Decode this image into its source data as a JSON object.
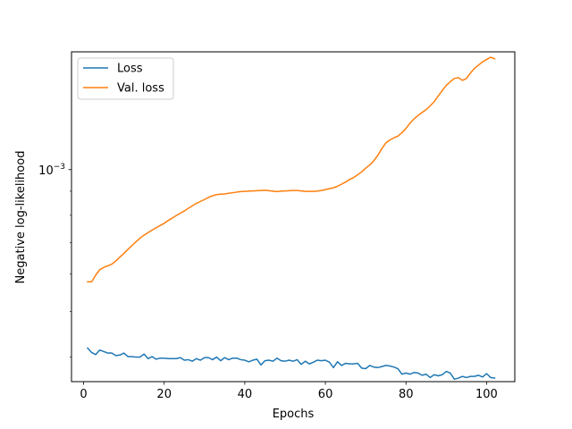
{
  "chart_data": {
    "type": "line",
    "xlabel": "Epochs",
    "ylabel": "Negative log-likelihood",
    "xlim": [
      -3,
      107
    ],
    "ylim_log10": [
      -3.45,
      -2.75
    ],
    "y_scale": "log",
    "x_ticks": [
      0,
      20,
      40,
      60,
      80,
      100
    ],
    "y_ticks": [
      {
        "value": 0.001,
        "base": "10",
        "exponent": "−3"
      }
    ],
    "grid": false,
    "legend_position": "upper-left",
    "series": [
      {
        "name": "Loss",
        "color": "#1f77b4",
        "x": [
          1,
          2,
          3,
          4,
          5,
          6,
          7,
          8,
          9,
          10,
          11,
          12,
          13,
          14,
          15,
          16,
          17,
          18,
          19,
          20,
          21,
          22,
          23,
          24,
          25,
          26,
          27,
          28,
          29,
          30,
          31,
          32,
          33,
          34,
          35,
          36,
          37,
          38,
          39,
          40,
          41,
          42,
          43,
          44,
          45,
          46,
          47,
          48,
          49,
          50,
          51,
          52,
          53,
          54,
          55,
          56,
          57,
          58,
          59,
          60,
          61,
          62,
          63,
          64,
          65,
          66,
          67,
          68,
          69,
          70,
          71,
          72,
          73,
          74,
          75,
          76,
          77,
          78,
          79,
          80,
          81,
          82,
          83,
          84,
          85,
          86,
          87,
          88,
          89,
          90,
          91,
          92,
          93,
          94,
          95,
          96,
          97,
          98,
          99,
          100,
          101,
          102
        ],
        "y": [
          0.000418,
          0.000409,
          0.000405,
          0.000414,
          0.000411,
          0.000408,
          0.000408,
          0.000403,
          0.000404,
          0.000408,
          0.000401,
          0.000401,
          0.0004,
          0.0004,
          0.000406,
          0.000397,
          0.000401,
          0.000396,
          0.000398,
          0.000398,
          0.000397,
          0.000397,
          0.000397,
          0.000399,
          0.000394,
          0.000395,
          0.000392,
          0.000397,
          0.000394,
          0.000399,
          0.000399,
          0.000395,
          0.0004,
          0.000393,
          0.000399,
          0.000395,
          0.000398,
          0.000398,
          0.000395,
          0.000394,
          0.000391,
          0.000394,
          0.000396,
          0.000385,
          0.000393,
          0.000394,
          0.000392,
          0.000398,
          0.000393,
          0.000392,
          0.000394,
          0.000392,
          0.000395,
          0.000386,
          0.000392,
          0.000387,
          0.00039,
          0.000394,
          0.000393,
          0.000394,
          0.00039,
          0.00038,
          0.000391,
          0.000384,
          0.000388,
          0.000387,
          0.000387,
          0.000388,
          0.000379,
          0.000378,
          0.000384,
          0.000381,
          0.00038,
          0.000382,
          0.000384,
          0.000383,
          0.000381,
          0.000378,
          0.000368,
          0.00037,
          0.000368,
          0.000371,
          0.00037,
          0.000366,
          0.000368,
          0.000362,
          0.000367,
          0.000365,
          0.000367,
          0.000373,
          0.00037,
          0.000359,
          0.000361,
          0.000364,
          0.000362,
          0.000364,
          0.000364,
          0.000366,
          0.000363,
          0.000369,
          0.000362,
          0.000361
        ]
      },
      {
        "name": "Val. loss",
        "color": "#ff7f0e",
        "x": [
          1,
          2,
          3,
          4,
          5,
          6,
          7,
          8,
          9,
          10,
          11,
          12,
          13,
          14,
          15,
          16,
          17,
          18,
          19,
          20,
          21,
          22,
          23,
          24,
          25,
          26,
          27,
          28,
          29,
          30,
          31,
          32,
          33,
          34,
          35,
          36,
          37,
          38,
          39,
          40,
          41,
          42,
          43,
          44,
          45,
          46,
          47,
          48,
          49,
          50,
          51,
          52,
          53,
          54,
          55,
          56,
          57,
          58,
          59,
          60,
          61,
          62,
          63,
          64,
          65,
          66,
          67,
          68,
          69,
          70,
          71,
          72,
          73,
          74,
          75,
          76,
          77,
          78,
          79,
          80,
          81,
          82,
          83,
          84,
          85,
          86,
          87,
          88,
          89,
          90,
          91,
          92,
          93,
          94,
          95,
          96,
          97,
          98,
          99,
          100,
          101,
          102
        ],
        "y": [
          0.000578,
          0.000578,
          0.000597,
          0.000613,
          0.00062,
          0.000625,
          0.00063,
          0.00064,
          0.000652,
          0.000664,
          0.000677,
          0.00069,
          0.000703,
          0.000715,
          0.000726,
          0.000735,
          0.000744,
          0.000753,
          0.000761,
          0.000769,
          0.00078,
          0.000789,
          0.000799,
          0.000808,
          0.000817,
          0.000828,
          0.000838,
          0.000848,
          0.000856,
          0.000864,
          0.000873,
          0.00088,
          0.000885,
          0.000887,
          0.000888,
          0.000891,
          0.000893,
          0.000896,
          0.000898,
          0.000899,
          0.0009,
          0.000901,
          0.000902,
          0.000903,
          0.000904,
          0.000902,
          0.0009,
          0.000898,
          0.0009,
          0.000901,
          0.000902,
          0.000903,
          0.000903,
          0.000901,
          0.000899,
          0.000899,
          0.000899,
          0.0009,
          0.000903,
          0.000907,
          0.000911,
          0.000915,
          0.000922,
          0.000931,
          0.000941,
          0.000953,
          0.000962,
          0.000975,
          0.000989,
          0.001007,
          0.001023,
          0.001044,
          0.001072,
          0.001108,
          0.001139,
          0.001156,
          0.001168,
          0.001178,
          0.001198,
          0.001223,
          0.001255,
          0.001281,
          0.001303,
          0.001322,
          0.001341,
          0.001366,
          0.001394,
          0.001433,
          0.001472,
          0.001509,
          0.001537,
          0.001561,
          0.001568,
          0.001547,
          0.001561,
          0.001603,
          0.001641,
          0.001667,
          0.001693,
          0.001713,
          0.001732,
          0.001719
        ]
      }
    ]
  }
}
